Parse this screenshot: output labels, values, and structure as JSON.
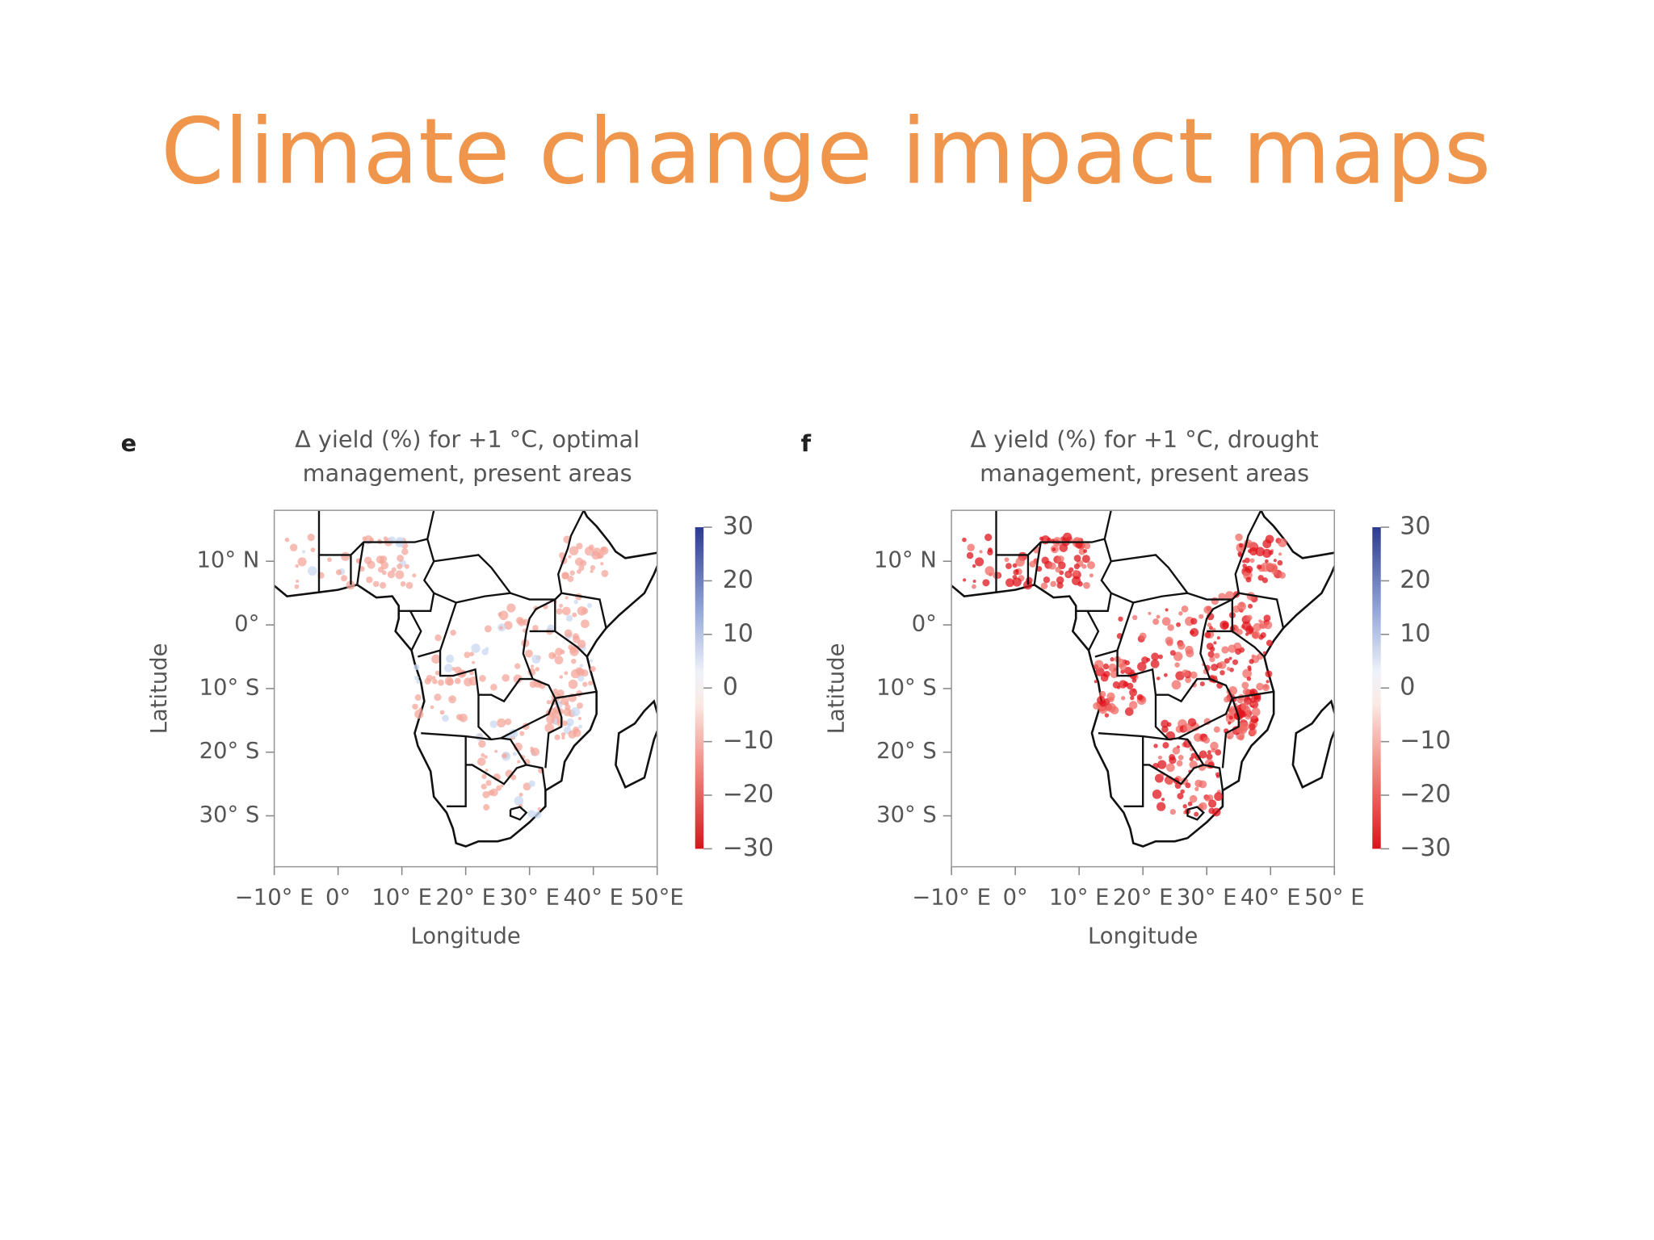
{
  "title": "Climate change impact maps",
  "panels": [
    {
      "label": "e",
      "title_lines": [
        "Δ yield (%) for +1 °C, optimal",
        "management, present areas"
      ],
      "xlabel": "Longitude",
      "ylabel": "Latitude",
      "xlim": [
        -10,
        50
      ],
      "ylim": [
        -38,
        18
      ],
      "xticks": [
        {
          "value": -10,
          "label": "−10° E"
        },
        {
          "value": 0,
          "label": "0°"
        },
        {
          "value": 10,
          "label": "10° E"
        },
        {
          "value": 20,
          "label": "20° E"
        },
        {
          "value": 30,
          "label": "30° E"
        },
        {
          "value": 40,
          "label": "40° E"
        },
        {
          "value": 50,
          "label": "50°E"
        }
      ],
      "yticks": [
        {
          "value": 10,
          "label": "10° N"
        },
        {
          "value": 0,
          "label": "0°"
        },
        {
          "value": -10,
          "label": "10° S"
        },
        {
          "value": -20,
          "label": "20° S"
        },
        {
          "value": -30,
          "label": "30° S"
        }
      ],
      "colorbar": {
        "lim": [
          -30,
          30
        ],
        "ticks": [
          30,
          20,
          10,
          0,
          {
            "value": -10,
            "label": "−10"
          },
          {
            "value": -20,
            "label": "−20"
          },
          {
            "value": -30,
            "label": "−30"
          }
        ]
      }
    },
    {
      "label": "f",
      "title_lines": [
        "Δ yield  (%) for +1 °C, drought",
        "management, present areas"
      ],
      "xlabel": "Longitude",
      "ylabel": "Latitude",
      "xlim": [
        -10,
        50
      ],
      "ylim": [
        -38,
        18
      ],
      "xticks": [
        {
          "value": -10,
          "label": "−10° E"
        },
        {
          "value": 0,
          "label": "0°"
        },
        {
          "value": 10,
          "label": "10° E"
        },
        {
          "value": 20,
          "label": "20° E"
        },
        {
          "value": 30,
          "label": "30° E"
        },
        {
          "value": 40,
          "label": "40° E"
        },
        {
          "value": 50,
          "label": "50° E"
        }
      ],
      "yticks": [
        {
          "value": 10,
          "label": "10° N"
        },
        {
          "value": 0,
          "label": "0°"
        },
        {
          "value": -10,
          "label": "10° S"
        },
        {
          "value": -20,
          "label": "20° S"
        },
        {
          "value": -30,
          "label": "30° S"
        }
      ],
      "colorbar": {
        "lim": [
          -30,
          30
        ],
        "ticks": [
          30,
          20,
          10,
          0,
          {
            "value": -10,
            "label": "−10"
          },
          {
            "value": -20,
            "label": "−20"
          },
          {
            "value": -30,
            "label": "−30"
          }
        ]
      }
    }
  ]
}
